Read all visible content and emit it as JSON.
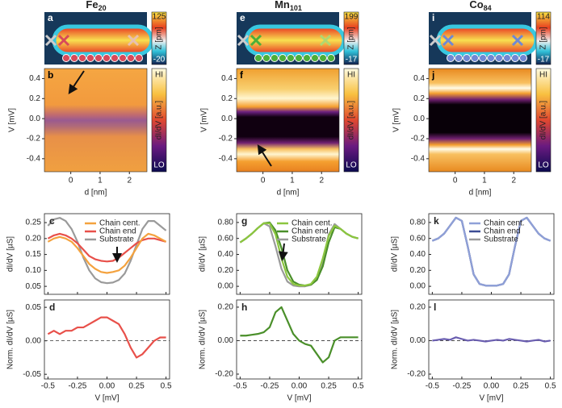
{
  "chart_data": [
    {
      "type": "topography",
      "label": "a",
      "title": "Fe",
      "title_sub": "20",
      "cbar_max": 125,
      "cbar_min": -20,
      "cbar_label": "Z [pm]",
      "marker_color": "#d84a5a"
    },
    {
      "type": "heatmap",
      "label": "b",
      "xlabel": "d [nm]",
      "ylabel": "V [mV]",
      "xlim": [
        -0.9,
        2.6
      ],
      "xticks": [
        0,
        1,
        2
      ],
      "ylim": [
        -0.53,
        0.5
      ],
      "yticks": [
        0.4,
        0.2,
        {
          "value": 0,
          "label": "0.0"
        },
        -0.2,
        -0.4
      ],
      "cbar_high": "HI",
      "cbar_low": "LO",
      "cbar_label": "dI/dV [a.u.]"
    },
    {
      "type": "line",
      "label": "c",
      "ylabel": "dI/dV [µS]",
      "x": [
        -0.5,
        -0.45,
        -0.4,
        -0.35,
        -0.3,
        -0.25,
        -0.2,
        -0.15,
        -0.1,
        -0.05,
        0,
        0.05,
        0.1,
        0.15,
        0.2,
        0.25,
        0.3,
        0.35,
        0.4,
        0.45,
        0.5
      ],
      "xlim": [
        -0.53,
        0.53
      ],
      "xticks": [
        -0.5,
        -0.25,
        {
          "value": 0,
          "label": "0.00"
        },
        0.25,
        0.5
      ],
      "show_xtick_labels": false,
      "ylim": [
        0.025,
        0.278
      ],
      "yticks": [
        {
          "value": 0.05,
          "label": "0.05"
        },
        {
          "value": 0.1,
          "label": "0.10"
        },
        0.15,
        {
          "value": 0.2,
          "label": "0.20"
        },
        0.25
      ],
      "legend": "upper center",
      "series": [
        {
          "name": "Chain cent.",
          "color": "#f4a23e",
          "values": [
            0.19,
            0.2,
            0.205,
            0.2,
            0.19,
            0.17,
            0.145,
            0.12,
            0.105,
            0.095,
            0.092,
            0.095,
            0.1,
            0.115,
            0.14,
            0.17,
            0.2,
            0.215,
            0.21,
            0.2,
            0.19
          ]
        },
        {
          "name": "Chain end",
          "color": "#e8504a",
          "values": [
            0.2,
            0.21,
            0.215,
            0.21,
            0.2,
            0.185,
            0.165,
            0.145,
            0.135,
            0.13,
            0.128,
            0.13,
            0.14,
            0.155,
            0.17,
            0.185,
            0.195,
            0.2,
            0.2,
            0.195,
            0.19
          ]
        },
        {
          "name": "Substrate",
          "color": "#9a9a9a",
          "values": [
            0.24,
            0.26,
            0.265,
            0.255,
            0.23,
            0.19,
            0.14,
            0.1,
            0.075,
            0.063,
            0.06,
            0.062,
            0.07,
            0.09,
            0.13,
            0.18,
            0.23,
            0.255,
            0.255,
            0.24,
            0.225
          ]
        }
      ]
    },
    {
      "type": "line",
      "label": "d",
      "ylabel": "Norm. dI/dV [µS]",
      "xlabel": "V [mV]",
      "x": [
        -0.5,
        -0.45,
        -0.4,
        -0.35,
        -0.3,
        -0.25,
        -0.2,
        -0.15,
        -0.1,
        -0.05,
        0,
        0.05,
        0.1,
        0.15,
        0.2,
        0.25,
        0.3,
        0.35,
        0.4,
        0.45,
        0.5
      ],
      "xlim": [
        -0.53,
        0.53
      ],
      "xticks": [
        -0.5,
        -0.25,
        {
          "value": 0,
          "label": "0.00"
        },
        0.25,
        0.5
      ],
      "show_xtick_labels": true,
      "ylim": [
        -0.057,
        0.061
      ],
      "yticks": [
        0.05,
        {
          "value": 0,
          "label": "0.00"
        },
        -0.05
      ],
      "zero_line": true,
      "series": [
        {
          "color": "#e8504a",
          "values": [
            0.01,
            0.015,
            0.01,
            0.015,
            0.015,
            0.02,
            0.02,
            0.025,
            0.03,
            0.035,
            0.035,
            0.03,
            0.025,
            0.01,
            -0.01,
            -0.025,
            -0.02,
            -0.01,
            0,
            0.005,
            0.005
          ]
        }
      ]
    },
    {
      "type": "topography",
      "label": "e",
      "title": "Mn",
      "title_sub": "101",
      "cbar_max": 199,
      "cbar_min": -17,
      "cbar_label": "Z [pm]",
      "marker_color": "#4caf3a"
    },
    {
      "type": "heatmap",
      "label": "f",
      "xlabel": "d [nm]",
      "ylabel": "V [mV]",
      "xlim": [
        -0.9,
        2.6
      ],
      "xticks": [
        0,
        1,
        2
      ],
      "ylim": [
        -0.53,
        0.5
      ],
      "yticks": [
        0.4,
        0.2,
        {
          "value": 0,
          "label": "0.0"
        },
        -0.2,
        -0.4
      ],
      "cbar_high": "HI",
      "cbar_low": "LO",
      "cbar_label": "dI/dV [a.u.]"
    },
    {
      "type": "line",
      "label": "g",
      "ylabel": "dI/dV [µS]",
      "x": [
        -0.5,
        -0.45,
        -0.4,
        -0.35,
        -0.3,
        -0.25,
        -0.2,
        -0.15,
        -0.1,
        -0.05,
        0,
        0.05,
        0.1,
        0.15,
        0.2,
        0.25,
        0.3,
        0.35,
        0.4,
        0.45,
        0.5
      ],
      "xlim": [
        -0.53,
        0.53
      ],
      "xticks": [
        -0.5,
        -0.25,
        {
          "value": 0,
          "label": "0.00"
        },
        0.25,
        0.5
      ],
      "show_xtick_labels": false,
      "ylim": [
        -0.1,
        0.91
      ],
      "yticks": [
        {
          "value": 0,
          "label": "0.00"
        },
        {
          "value": 0.2,
          "label": "0.20"
        },
        {
          "value": 0.4,
          "label": "0.40"
        },
        {
          "value": 0.6,
          "label": "0.60"
        },
        {
          "value": 0.8,
          "label": "0.80"
        }
      ],
      "legend": "upper center",
      "series": [
        {
          "name": "Chain cent.",
          "color": "#8cc63f",
          "values": [
            0.55,
            0.6,
            0.66,
            0.73,
            0.79,
            0.79,
            0.65,
            0.35,
            0.12,
            0.03,
            0.01,
            0.01,
            0.03,
            0.12,
            0.35,
            0.63,
            0.76,
            0.72,
            0.66,
            0.62,
            0.6
          ]
        },
        {
          "name": "Chain end",
          "color": "#4a8f2a",
          "values": [
            0.55,
            0.6,
            0.66,
            0.73,
            0.79,
            0.8,
            0.7,
            0.48,
            0.2,
            0.06,
            0.02,
            0.01,
            0.02,
            0.08,
            0.25,
            0.55,
            0.74,
            0.72,
            0.66,
            0.62,
            0.6
          ]
        },
        {
          "name": "Substrate",
          "color": "#9a9a9a",
          "values": [
            0.55,
            0.6,
            0.66,
            0.73,
            0.79,
            0.75,
            0.5,
            0.22,
            0.06,
            0.01,
            0,
            0,
            0.02,
            0.08,
            0.3,
            0.65,
            0.78,
            0.72,
            0.66,
            0.62,
            0.6
          ]
        }
      ]
    },
    {
      "type": "line",
      "label": "h",
      "ylabel": "Norm. dI/dV [µS]",
      "xlabel": "V [mV]",
      "x": [
        -0.5,
        -0.45,
        -0.4,
        -0.35,
        -0.3,
        -0.25,
        -0.2,
        -0.15,
        -0.1,
        -0.05,
        0,
        0.05,
        0.1,
        0.15,
        0.2,
        0.25,
        0.3,
        0.35,
        0.4,
        0.45,
        0.5
      ],
      "xlim": [
        -0.53,
        0.53
      ],
      "xticks": [
        -0.5,
        -0.25,
        {
          "value": 0,
          "label": "0.00"
        },
        0.25,
        0.5
      ],
      "show_xtick_labels": true,
      "ylim": [
        -0.229,
        0.243
      ],
      "yticks": [
        {
          "value": 0.2,
          "label": "0.20"
        },
        {
          "value": 0,
          "label": "0.00"
        },
        {
          "value": -0.2,
          "label": "-0.20"
        }
      ],
      "zero_line": true,
      "series": [
        {
          "color": "#4a8f2a",
          "values": [
            0.03,
            0.03,
            0.035,
            0.04,
            0.05,
            0.08,
            0.17,
            0.2,
            0.12,
            0.04,
            0,
            -0.02,
            -0.03,
            -0.08,
            -0.13,
            -0.1,
            0,
            0.02,
            0.02,
            0.02,
            0.02
          ]
        }
      ]
    },
    {
      "type": "topography",
      "label": "i",
      "title": "Co",
      "title_sub": "84",
      "cbar_max": 114,
      "cbar_min": -17,
      "cbar_label": "Z [pm]",
      "marker_color": "#7088d4"
    },
    {
      "type": "heatmap",
      "label": "j",
      "xlabel": "d [nm]",
      "ylabel": "V [mV]",
      "xlim": [
        -0.9,
        2.6
      ],
      "xticks": [
        0,
        1,
        2
      ],
      "ylim": [
        -0.53,
        0.5
      ],
      "yticks": [
        0.4,
        0.2,
        {
          "value": 0,
          "label": "0.0"
        },
        -0.2,
        -0.4
      ],
      "cbar_high": "HI",
      "cbar_low": "LO",
      "cbar_label": "dI/dV [a.u.]"
    },
    {
      "type": "line",
      "label": "k",
      "ylabel": "dI/dV [µS]",
      "x": [
        -0.5,
        -0.45,
        -0.4,
        -0.35,
        -0.3,
        -0.25,
        -0.2,
        -0.15,
        -0.1,
        -0.05,
        0,
        0.05,
        0.1,
        0.15,
        0.2,
        0.25,
        0.3,
        0.35,
        0.4,
        0.45,
        0.5
      ],
      "xlim": [
        -0.53,
        0.53
      ],
      "xticks": [
        -0.5,
        -0.25,
        {
          "value": 0,
          "label": "0.00"
        },
        0.25,
        0.5
      ],
      "show_xtick_labels": false,
      "ylim": [
        -0.1,
        0.91
      ],
      "yticks": [
        {
          "value": 0,
          "label": "0.00"
        },
        {
          "value": 0.2,
          "label": "0.20"
        },
        {
          "value": 0.4,
          "label": "0.40"
        },
        {
          "value": 0.6,
          "label": "0.60"
        },
        {
          "value": 0.8,
          "label": "0.80"
        }
      ],
      "legend": "upper center",
      "series": [
        {
          "name": "Chain cent.",
          "color": "#8fa0d8",
          "values": [
            0.57,
            0.6,
            0.66,
            0.76,
            0.86,
            0.82,
            0.5,
            0.15,
            0.03,
            0.01,
            0.01,
            0.01,
            0.03,
            0.15,
            0.5,
            0.82,
            0.86,
            0.76,
            0.66,
            0.6,
            0.57
          ]
        },
        {
          "name": "Chain end",
          "color": "#3c4c94",
          "values": [
            0.57,
            0.6,
            0.66,
            0.76,
            0.86,
            0.82,
            0.5,
            0.15,
            0.03,
            0.01,
            0.01,
            0.01,
            0.03,
            0.15,
            0.5,
            0.82,
            0.86,
            0.76,
            0.66,
            0.6,
            0.57
          ]
        },
        {
          "name": "Substrate",
          "color": "#9a9a9a",
          "values": [
            0.57,
            0.6,
            0.66,
            0.76,
            0.86,
            0.82,
            0.5,
            0.15,
            0.03,
            0.01,
            0.01,
            0.01,
            0.03,
            0.15,
            0.5,
            0.82,
            0.86,
            0.76,
            0.66,
            0.6,
            0.57
          ]
        }
      ]
    },
    {
      "type": "line",
      "label": "l",
      "ylabel": "Norm. dI/dV [µS]",
      "xlabel": "V [mV]",
      "x": [
        -0.5,
        -0.45,
        -0.4,
        -0.35,
        -0.3,
        -0.25,
        -0.2,
        -0.15,
        -0.1,
        -0.05,
        0,
        0.05,
        0.1,
        0.15,
        0.2,
        0.25,
        0.3,
        0.35,
        0.4,
        0.45,
        0.5
      ],
      "xlim": [
        -0.53,
        0.53
      ],
      "xticks": [
        -0.5,
        -0.25,
        {
          "value": 0,
          "label": "0.00"
        },
        0.25,
        0.5
      ],
      "show_xtick_labels": true,
      "ylim": [
        -0.229,
        0.243
      ],
      "yticks": [
        {
          "value": 0.2,
          "label": "0.20"
        },
        {
          "value": 0,
          "label": "0.00"
        },
        {
          "value": -0.2,
          "label": "-0.20"
        }
      ],
      "zero_line": true,
      "series": [
        {
          "color": "#6a5eb0",
          "values": [
            0,
            0.005,
            0.01,
            0.005,
            0.02,
            0.01,
            0,
            0.005,
            0,
            -0.005,
            0,
            0.005,
            0,
            0.01,
            0.005,
            0,
            -0.005,
            0,
            0.005,
            -0.005,
            0
          ]
        }
      ]
    }
  ]
}
